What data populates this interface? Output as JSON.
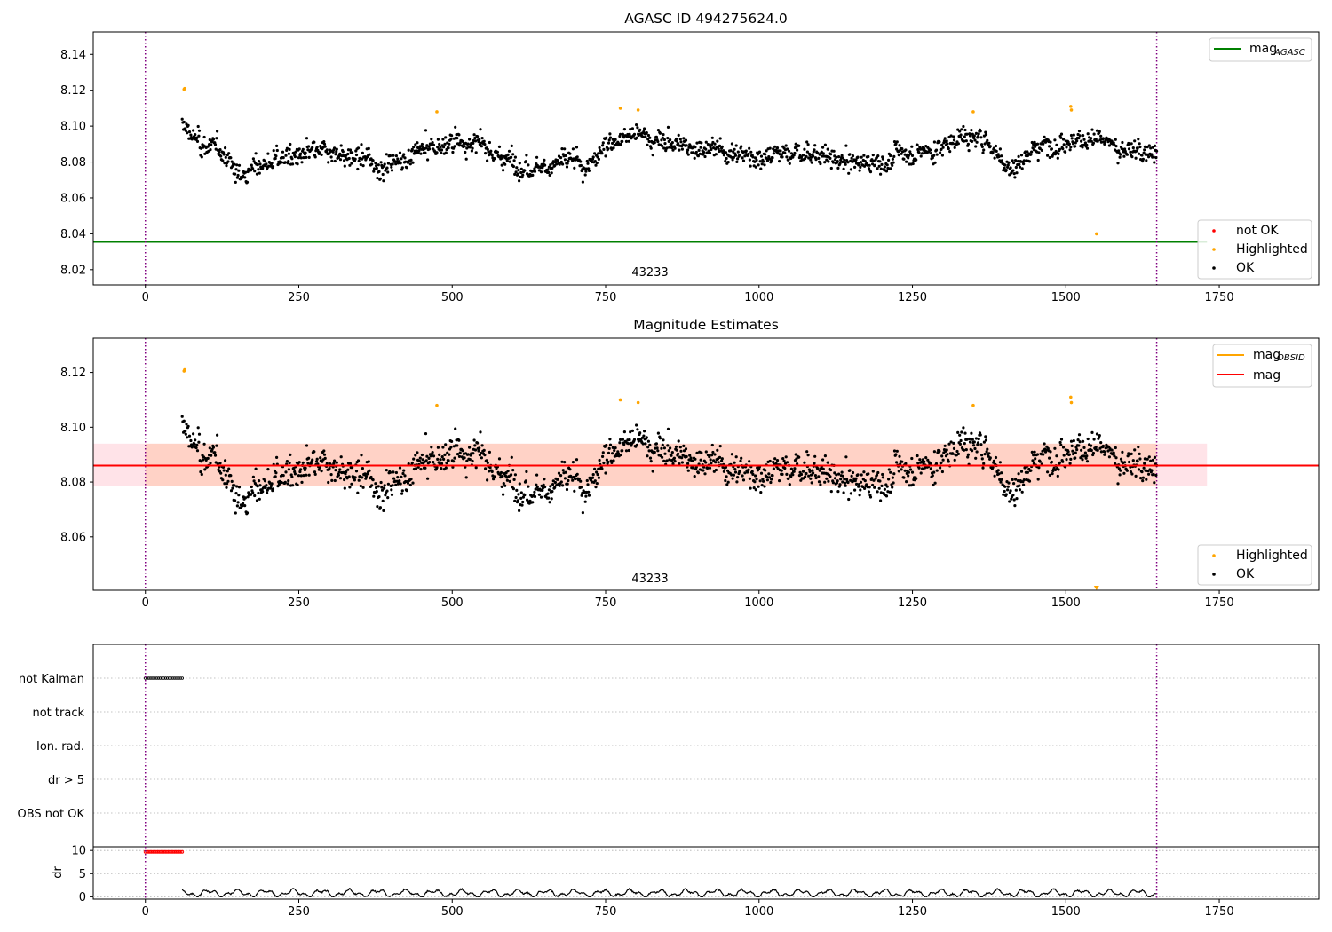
{
  "chart_data": [
    {
      "id": "p1",
      "type": "scatter",
      "title": "AGASC ID 494275624.0",
      "obsid_label": "43233",
      "xlim": [
        -85,
        1912
      ],
      "ylim": [
        8.0115,
        8.1525
      ],
      "xticks": [
        0,
        250,
        500,
        750,
        1000,
        1250,
        1500,
        1750
      ],
      "yticks": [
        8.02,
        8.04,
        8.06,
        8.08,
        8.1,
        8.12,
        8.14
      ],
      "ytick_labels": [
        "8.02",
        "8.04",
        "8.06",
        "8.08",
        "8.10",
        "8.12",
        "8.14"
      ],
      "obs_boundaries": [
        0,
        1648
      ],
      "mag_agasc": 8.0355,
      "mag_agasc_xrange": [
        -85,
        1730
      ],
      "legend_lines": [
        {
          "label": "mag",
          "sub": "AGASC",
          "color": "#008000"
        }
      ],
      "legend_markers": [
        {
          "label": "not OK",
          "color": "#ff0000"
        },
        {
          "label": "Highlighted",
          "color": "#ffa500"
        },
        {
          "label": "OK",
          "color": "#000000"
        }
      ],
      "highlighted_points": [
        [
          63,
          8.1205
        ],
        [
          64,
          8.121
        ],
        [
          475,
          8.108
        ],
        [
          774,
          8.11
        ],
        [
          803,
          8.109
        ],
        [
          1349,
          8.108
        ],
        [
          1508,
          8.111
        ],
        [
          1509,
          8.109
        ],
        [
          1550,
          8.04
        ]
      ]
    },
    {
      "id": "p2",
      "type": "scatter",
      "title": "Magnitude Estimates",
      "obsid_label": "43233",
      "xlim": [
        -85,
        1912
      ],
      "ylim": [
        8.0405,
        8.1325
      ],
      "xticks": [
        0,
        250,
        500,
        750,
        1000,
        1250,
        1500,
        1750
      ],
      "yticks": [
        8.06,
        8.08,
        8.1,
        8.12
      ],
      "ytick_labels": [
        "8.06",
        "8.08",
        "8.10",
        "8.12"
      ],
      "obs_boundaries": [
        0,
        1648
      ],
      "mag": 8.086,
      "mag_band": [
        8.0785,
        8.094
      ],
      "band_xrange": [
        -85,
        1730
      ],
      "obsid_band_xrange": [
        0,
        1648
      ],
      "legend_lines": [
        {
          "label": "mag",
          "sub": "OBSID",
          "color": "#ffa500"
        },
        {
          "label": "mag",
          "sub": "",
          "color": "#ff0000"
        }
      ],
      "legend_markers": [
        {
          "label": "Highlighted",
          "color": "#ffa500"
        },
        {
          "label": "OK",
          "color": "#000000"
        }
      ],
      "highlighted_points": [
        [
          63,
          8.1205
        ],
        [
          64,
          8.121
        ],
        [
          475,
          8.108
        ],
        [
          774,
          8.11
        ],
        [
          803,
          8.109
        ],
        [
          1349,
          8.108
        ],
        [
          1508,
          8.111
        ],
        [
          1509,
          8.109
        ]
      ],
      "offscale_marker": {
        "x": 1550,
        "direction": "down"
      }
    },
    {
      "id": "p3",
      "type": "scatter",
      "xlim": [
        -85,
        1912
      ],
      "flag_labels": [
        "not Kalman",
        "not track",
        "Ion. rad.",
        "dr > 5",
        "OBS not OK"
      ],
      "not_kalman_xrange": [
        0,
        62
      ],
      "obs_boundaries": [
        0,
        1648
      ]
    },
    {
      "id": "p4",
      "type": "line",
      "ylabel": "dr",
      "xlim": [
        -85,
        1912
      ],
      "ylim": [
        -0.5,
        10.8
      ],
      "xticks": [
        0,
        250,
        500,
        750,
        1000,
        1250,
        1500,
        1750
      ],
      "yticks": [
        0,
        5,
        10
      ],
      "ytick_labels": [
        "0",
        "5",
        "10"
      ],
      "obs_boundaries": [
        0,
        1648
      ],
      "dr_high_xrange": [
        0,
        60
      ],
      "dr_high_value": 9.7,
      "dr_baseline": 0.8
    }
  ],
  "series_model": {
    "n": 1648,
    "start": 60,
    "end": 1648,
    "baseline": 8.084,
    "noise": 0.0045,
    "anchors": [
      [
        60,
        8.1
      ],
      [
        90,
        8.09
      ],
      [
        130,
        8.085
      ],
      [
        150,
        8.072
      ],
      [
        180,
        8.078
      ],
      [
        220,
        8.082
      ],
      [
        300,
        8.085
      ],
      [
        340,
        8.082
      ],
      [
        380,
        8.078
      ],
      [
        420,
        8.082
      ],
      [
        470,
        8.088
      ],
      [
        510,
        8.092
      ],
      [
        540,
        8.09
      ],
      [
        580,
        8.082
      ],
      [
        640,
        8.078
      ],
      [
        690,
        8.08
      ],
      [
        730,
        8.079
      ],
      [
        760,
        8.093
      ],
      [
        800,
        8.095
      ],
      [
        850,
        8.091
      ],
      [
        900,
        8.088
      ],
      [
        950,
        8.086
      ],
      [
        1000,
        8.084
      ],
      [
        1050,
        8.085
      ],
      [
        1100,
        8.085
      ],
      [
        1130,
        8.08
      ],
      [
        1190,
        8.079
      ],
      [
        1230,
        8.085
      ],
      [
        1290,
        8.087
      ],
      [
        1340,
        8.096
      ],
      [
        1370,
        8.092
      ],
      [
        1410,
        8.076
      ],
      [
        1450,
        8.088
      ],
      [
        1500,
        8.094
      ],
      [
        1550,
        8.092
      ],
      [
        1600,
        8.086
      ],
      [
        1648,
        8.088
      ]
    ]
  }
}
